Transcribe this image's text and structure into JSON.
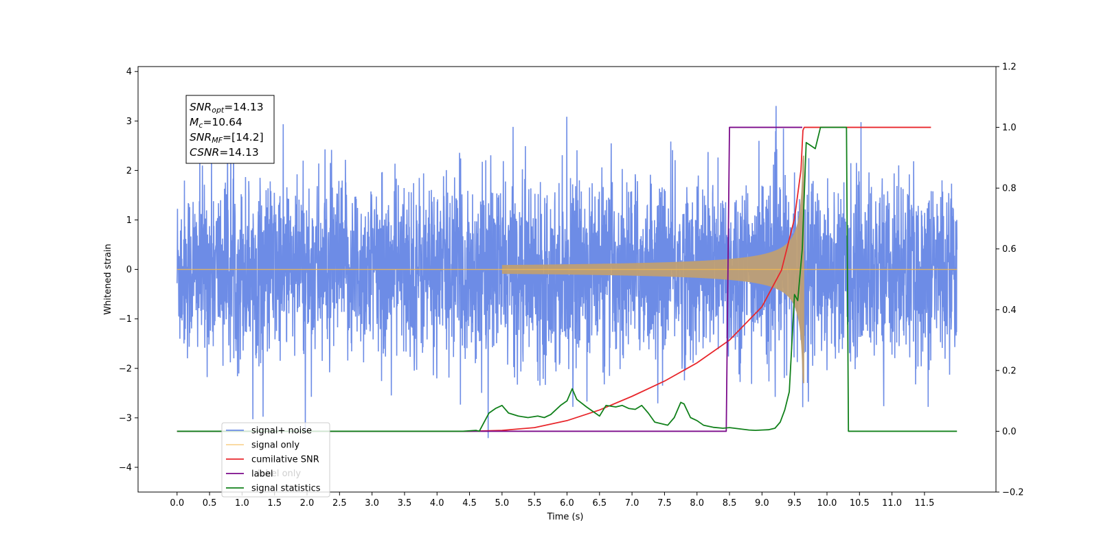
{
  "chart_data": {
    "type": "line",
    "xlabel": "Time (s)",
    "ylabel_left": "Whitened strain",
    "ylabel_right": "",
    "xlim": [
      -0.6,
      12.6
    ],
    "ylim_left": [
      -4.5,
      4.1
    ],
    "ylim_right": [
      -0.2,
      1.2
    ],
    "x_ticks": [
      "0.0",
      "0.5",
      "1.0",
      "1.5",
      "2.0",
      "2.5",
      "3.0",
      "3.5",
      "4.0",
      "4.5",
      "5.0",
      "5.5",
      "6.0",
      "6.5",
      "7.0",
      "7.5",
      "8.0",
      "8.5",
      "9.0",
      "9.5",
      "10.0",
      "10.5",
      "11.0",
      "11.5"
    ],
    "y_ticks_left": [
      "4",
      "3",
      "2",
      "1",
      "0",
      "−1",
      "−2",
      "−3",
      "−4"
    ],
    "y_ticks_right": [
      "1.2",
      "1.0",
      "0.8",
      "0.6",
      "0.4",
      "0.2",
      "0.0",
      "−0.2"
    ],
    "grid": false,
    "legend_position": "lower-left",
    "info_box": {
      "lines": [
        {
          "name": "SNR",
          "sub": "opt",
          "value": "=14.13"
        },
        {
          "name": "M",
          "sub": "c",
          "value": "=10.64"
        },
        {
          "name": "SNR",
          "sub": "MF",
          "value": "=[14.2]"
        },
        {
          "name": "CSNR",
          "sub": "",
          "value": "=14.13"
        }
      ]
    },
    "series": [
      {
        "name": "signal+ noise",
        "axis": "left",
        "color": "#6d8ce6",
        "noise_std": 0.9,
        "time_range": [
          0,
          12
        ],
        "description_values": {
          "typical_peak_abs": 3.2,
          "max": 3.65,
          "min": -4.1
        }
      },
      {
        "name": "signal only",
        "axis": "left",
        "color": "#f5b84c",
        "chirp_end_time": 9.65,
        "chirp_peak_amplitude": 2.3,
        "time_range": [
          0,
          12
        ]
      },
      {
        "name": "cumilative SNR",
        "axis": "right",
        "color": "#e8262b",
        "points": [
          [
            0,
            0
          ],
          [
            4.0,
            0
          ],
          [
            4.5,
            0.0
          ],
          [
            5.0,
            0.003
          ],
          [
            5.5,
            0.012
          ],
          [
            6.0,
            0.035
          ],
          [
            6.5,
            0.07
          ],
          [
            7.0,
            0.115
          ],
          [
            7.5,
            0.165
          ],
          [
            8.0,
            0.225
          ],
          [
            8.5,
            0.3
          ],
          [
            9.0,
            0.41
          ],
          [
            9.3,
            0.53
          ],
          [
            9.5,
            0.7
          ],
          [
            9.6,
            0.86
          ],
          [
            9.63,
            0.99
          ],
          [
            9.65,
            1.0
          ],
          [
            11.6,
            1.0
          ]
        ]
      },
      {
        "name": "label",
        "axis": "right",
        "color": "#7b0a8a",
        "points": [
          [
            0,
            0
          ],
          [
            8.45,
            0
          ],
          [
            8.5,
            1.0
          ],
          [
            9.6,
            1.0
          ],
          [
            9.62,
            1.0
          ]
        ]
      },
      {
        "name": "signal statistics",
        "axis": "right",
        "color": "#10801a",
        "points": [
          [
            0,
            0
          ],
          [
            4.4,
            0
          ],
          [
            4.6,
            0.003
          ],
          [
            4.65,
            0.0
          ],
          [
            4.8,
            0.06
          ],
          [
            4.9,
            0.075
          ],
          [
            5.0,
            0.085
          ],
          [
            5.1,
            0.06
          ],
          [
            5.25,
            0.05
          ],
          [
            5.4,
            0.045
          ],
          [
            5.55,
            0.05
          ],
          [
            5.65,
            0.045
          ],
          [
            5.75,
            0.055
          ],
          [
            5.9,
            0.085
          ],
          [
            6.0,
            0.1
          ],
          [
            6.08,
            0.14
          ],
          [
            6.15,
            0.105
          ],
          [
            6.3,
            0.08
          ],
          [
            6.4,
            0.065
          ],
          [
            6.5,
            0.05
          ],
          [
            6.6,
            0.085
          ],
          [
            6.75,
            0.08
          ],
          [
            6.85,
            0.085
          ],
          [
            6.95,
            0.075
          ],
          [
            7.05,
            0.072
          ],
          [
            7.15,
            0.085
          ],
          [
            7.25,
            0.06
          ],
          [
            7.35,
            0.03
          ],
          [
            7.45,
            0.025
          ],
          [
            7.55,
            0.02
          ],
          [
            7.65,
            0.045
          ],
          [
            7.75,
            0.095
          ],
          [
            7.8,
            0.09
          ],
          [
            7.9,
            0.045
          ],
          [
            8.0,
            0.035
          ],
          [
            8.1,
            0.02
          ],
          [
            8.25,
            0.013
          ],
          [
            8.4,
            0.01
          ],
          [
            8.5,
            0.012
          ],
          [
            8.65,
            0.008
          ],
          [
            8.8,
            0.004
          ],
          [
            8.9,
            0.003
          ],
          [
            9.0,
            0.004
          ],
          [
            9.1,
            0.005
          ],
          [
            9.2,
            0.01
          ],
          [
            9.28,
            0.03
          ],
          [
            9.35,
            0.07
          ],
          [
            9.42,
            0.13
          ],
          [
            9.5,
            0.45
          ],
          [
            9.55,
            0.43
          ],
          [
            9.62,
            0.6
          ],
          [
            9.68,
            0.95
          ],
          [
            9.75,
            0.94
          ],
          [
            9.82,
            0.93
          ],
          [
            9.9,
            1.0
          ],
          [
            10.25,
            1.0
          ],
          [
            10.3,
            1.0
          ],
          [
            10.33,
            0.0
          ],
          [
            12.0,
            0.0
          ]
        ]
      }
    ],
    "legend_extra_note": "label only"
  }
}
